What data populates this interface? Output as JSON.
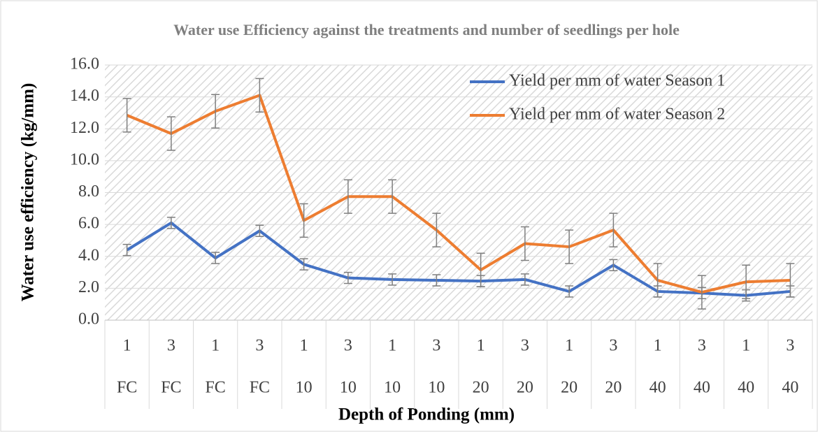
{
  "chart_data": {
    "type": "line",
    "title": "Water use Efficiency against the treatments and number of seedlings per hole",
    "x_label": "Depth of Ponding (mm)",
    "y_label": "Water use efficiency (kg/mm)",
    "categories": [
      "1",
      "3",
      "1",
      "3",
      "1",
      "3",
      "1",
      "3",
      "1",
      "3",
      "1",
      "3",
      "1",
      "3",
      "1",
      "3"
    ],
    "groups": [
      "FC",
      "FC",
      "FC",
      "FC",
      "10",
      "10",
      "10",
      "10",
      "20",
      "20",
      "20",
      "20",
      "40",
      "40",
      "40",
      "40"
    ],
    "series": [
      {
        "name": "Yield per mm of water Season 1",
        "color": "#4472c4",
        "values": [
          4.4,
          6.1,
          3.9,
          5.6,
          3.5,
          2.65,
          2.55,
          2.5,
          2.45,
          2.55,
          1.8,
          3.45,
          1.8,
          1.7,
          1.55,
          1.8
        ],
        "errors": [
          0.35,
          0.35,
          0.35,
          0.35,
          0.35,
          0.35,
          0.35,
          0.35,
          0.35,
          0.35,
          0.35,
          0.35,
          0.35,
          0.35,
          0.35,
          0.35
        ]
      },
      {
        "name": "Yield per mm of water Season 2",
        "color": "#ed7d31",
        "values": [
          12.85,
          11.7,
          13.1,
          14.1,
          6.25,
          7.75,
          7.75,
          5.65,
          3.15,
          4.8,
          4.6,
          5.65,
          2.5,
          1.75,
          2.4,
          2.5
        ],
        "errors": [
          1.05,
          1.05,
          1.05,
          1.05,
          1.05,
          1.05,
          1.05,
          1.05,
          1.05,
          1.05,
          1.05,
          1.05,
          1.05,
          1.05,
          1.05,
          1.05
        ]
      }
    ],
    "error_color": "#7f7f7f",
    "ylim": [
      0,
      16
    ],
    "yticks": [
      {
        "value": 0,
        "label": "0.0"
      },
      {
        "value": 2,
        "label": "2.0"
      },
      {
        "value": 4,
        "label": "4.0"
      },
      {
        "value": 6,
        "label": "6.0"
      },
      {
        "value": 8,
        "label": "8.0"
      },
      {
        "value": 10,
        "label": "10.0"
      },
      {
        "value": 12,
        "label": "12.0"
      },
      {
        "value": 14,
        "label": "14.0"
      },
      {
        "value": 16,
        "label": "16.0"
      }
    ],
    "legend": "upper right",
    "grid": true
  }
}
